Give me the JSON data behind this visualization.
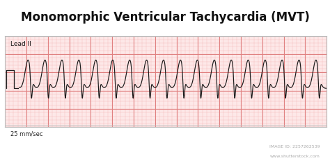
{
  "title": "Monomorphic Ventricular Tachycardia (MVT)",
  "title_fontsize": 12,
  "title_fontweight": "bold",
  "lead_label": "Lead II",
  "speed_label": "25 mm/sec",
  "bg_color": "#ffffff",
  "ecg_bg_color": "#fde8e8",
  "grid_minor_color": "#f5c0c0",
  "grid_major_color": "#e08080",
  "ecg_line_color": "#1a1a1a",
  "border_color": "#bbbbbb",
  "shutterstock_bg": "#2d3444",
  "num_beats": 19,
  "beat_period": 0.032,
  "ecg_amplitude": 0.62,
  "baseline": -0.15
}
